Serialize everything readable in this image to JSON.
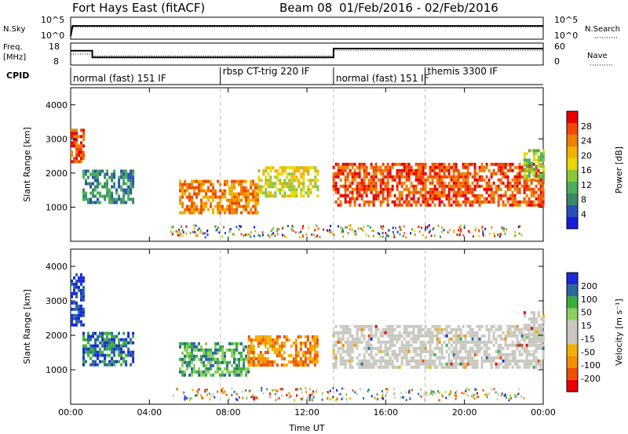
{
  "header": {
    "station": "Fort Hays East (fitACF)",
    "beam": "Beam 08",
    "date_range": "01/Feb/2016 - 02/Feb/2016"
  },
  "colors": {
    "power": [
      "#1a1adc",
      "#2a50b8",
      "#3a8a6a",
      "#4cae5a",
      "#88c83a",
      "#e8d800",
      "#f2b000",
      "#f08000",
      "#ef4a00",
      "#e80000"
    ],
    "velocity": [
      "#e80000",
      "#f05000",
      "#f09000",
      "#f2b000",
      "#c8c8c0",
      "#c8c8c0",
      "#8cd060",
      "#3cae3c",
      "#2a6a9a",
      "#1a2ad8"
    ],
    "scatter_gray": "#c8c8c0"
  },
  "chart_data": [
    {
      "type": "line",
      "panel": "N.Sky / N.Search",
      "left_label": "N.Sky",
      "right_label": "N.Search",
      "left_ticks": [
        "10^5",
        "10^0"
      ],
      "right_ticks": [
        "10^5",
        "10^0"
      ],
      "series": [
        {
          "name": "N.Sky",
          "style": "solid",
          "x_hours": [
            0,
            0.1,
            24
          ],
          "values_log10": [
            0,
            0.6,
            0.6
          ]
        },
        {
          "name": "N.Search",
          "style": "dotted",
          "x_hours": [
            0,
            24
          ],
          "values_log10": [
            0.55,
            0.55
          ]
        }
      ]
    },
    {
      "type": "line",
      "panel": "Freq. / Nave",
      "left_label": "Freq.",
      "left_unit": "[MHz]",
      "right_label": "Nave",
      "left_ticks": [
        "18",
        "8"
      ],
      "right_ticks": [
        "60",
        "0"
      ],
      "freq_ylim": [
        8,
        18
      ],
      "nave_ylim": [
        0,
        60
      ],
      "series": [
        {
          "name": "Freq.",
          "style": "solid",
          "x_hours": [
            0,
            1.1,
            1.1,
            13.35,
            13.35,
            24
          ],
          "values": [
            14.5,
            14.5,
            11.5,
            11.5,
            15.5,
            15.5
          ]
        },
        {
          "name": "Nave",
          "style": "dotted",
          "x_hours": [
            0,
            1.1,
            1.1,
            13.35,
            13.35,
            24
          ],
          "values": [
            30,
            30,
            25,
            25,
            40,
            40
          ]
        }
      ]
    },
    {
      "type": "table",
      "panel": "CPID",
      "label": "CPID",
      "segments": [
        {
          "start_hours": 0,
          "text": "normal (fast) 151 IF"
        },
        {
          "start_hours": 7.6,
          "text": "rbsp CT-trig 220 IF"
        },
        {
          "start_hours": 13.35,
          "text": "normal (fast) 151 IF"
        },
        {
          "start_hours": 18.0,
          "text": "themis 3300 IF"
        }
      ]
    },
    {
      "type": "heatmap",
      "panel": "Power",
      "ylabel": "Slant Range [km]",
      "xlabel": "Time UT",
      "xlim_hours": [
        0,
        24
      ],
      "ylim_km": [
        0,
        4500
      ],
      "y_ticks": [
        "1000",
        "2000",
        "3000",
        "4000"
      ],
      "x_ticks": [
        "00:00",
        "04:00",
        "08:00",
        "12:00",
        "16:00",
        "20:00",
        "00:00"
      ],
      "colorbar_title": "Power [dB]",
      "colorbar_ticks": [
        "4",
        "8",
        "12",
        "16",
        "20",
        "24",
        "28"
      ],
      "regions": [
        {
          "t": [
            0.0,
            0.6
          ],
          "r": [
            2300,
            3300
          ],
          "level": 8
        },
        {
          "t": [
            0.6,
            3.2
          ],
          "r": [
            1100,
            2100
          ],
          "level": 2
        },
        {
          "t": [
            5.5,
            9.5
          ],
          "r": [
            800,
            1800
          ],
          "level": 7
        },
        {
          "t": [
            9.5,
            12.5
          ],
          "r": [
            1300,
            2200
          ],
          "level": 5
        },
        {
          "t": [
            13.3,
            24.0
          ],
          "r": [
            1100,
            2300
          ],
          "level": 8
        },
        {
          "t": [
            23.0,
            24.0
          ],
          "r": [
            1800,
            2700
          ],
          "level": 4
        }
      ]
    },
    {
      "type": "heatmap",
      "panel": "Velocity",
      "ylabel": "Slant Range [km]",
      "xlabel": "Time UT",
      "xlim_hours": [
        0,
        24
      ],
      "ylim_km": [
        0,
        4500
      ],
      "y_ticks": [
        "1000",
        "2000",
        "3000",
        "4000"
      ],
      "x_ticks": [
        "00:00",
        "04:00",
        "08:00",
        "12:00",
        "16:00",
        "20:00",
        "00:00"
      ],
      "colorbar_title": "Velocity [m s⁻¹]",
      "colorbar_ticks": [
        "200",
        "100",
        "50",
        "15",
        "-15",
        "-50",
        "-100",
        "-200"
      ],
      "regions": [
        {
          "t": [
            0.0,
            0.6
          ],
          "r": [
            2300,
            3800
          ],
          "level": 9
        },
        {
          "t": [
            0.6,
            3.2
          ],
          "r": [
            1100,
            2100
          ],
          "level": 8
        },
        {
          "t": [
            5.5,
            9.0
          ],
          "r": [
            800,
            1800
          ],
          "level": 7
        },
        {
          "t": [
            9.0,
            12.5
          ],
          "r": [
            1100,
            2000
          ],
          "level": 2
        },
        {
          "t": [
            13.3,
            24.0
          ],
          "r": [
            1100,
            2300
          ],
          "level": 5
        },
        {
          "t": [
            23.0,
            24.0
          ],
          "r": [
            1800,
            2700
          ],
          "level": 4
        }
      ]
    }
  ]
}
